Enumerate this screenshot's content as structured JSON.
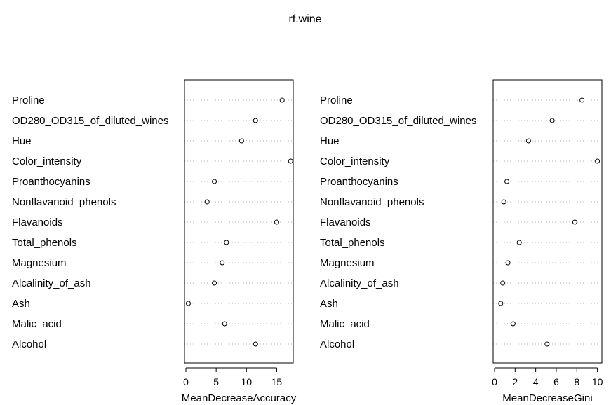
{
  "chart_data": {
    "title": "rf.wine",
    "type": "scatter",
    "categories": [
      "Proline",
      "OD280_OD315_of_diluted_wines",
      "Hue",
      "Color_intensity",
      "Proanthocyanins",
      "Nonflavanoid_phenols",
      "Flavanoids",
      "Total_phenols",
      "Magnesium",
      "Alcalinity_of_ash",
      "Ash",
      "Malic_acid",
      "Alcohol"
    ],
    "panels": [
      {
        "xlabel": "MeanDecreaseAccuracy",
        "xlim": [
          0,
          17.5
        ],
        "xticks": [
          0,
          5,
          10,
          15
        ],
        "values": [
          15.9,
          11.5,
          9.2,
          17.3,
          4.7,
          3.5,
          15.0,
          6.7,
          6.0,
          4.7,
          0.4,
          6.4,
          11.5
        ]
      },
      {
        "xlabel": "MeanDecreaseGini",
        "xlim": [
          0,
          10.3
        ],
        "xticks": [
          0,
          2,
          4,
          6,
          8,
          10
        ],
        "values": [
          8.5,
          5.6,
          3.3,
          10.0,
          1.2,
          0.9,
          7.8,
          2.4,
          1.3,
          0.8,
          0.6,
          1.8,
          5.1
        ]
      }
    ],
    "grid": "dotted horizontal",
    "legend": "none"
  }
}
